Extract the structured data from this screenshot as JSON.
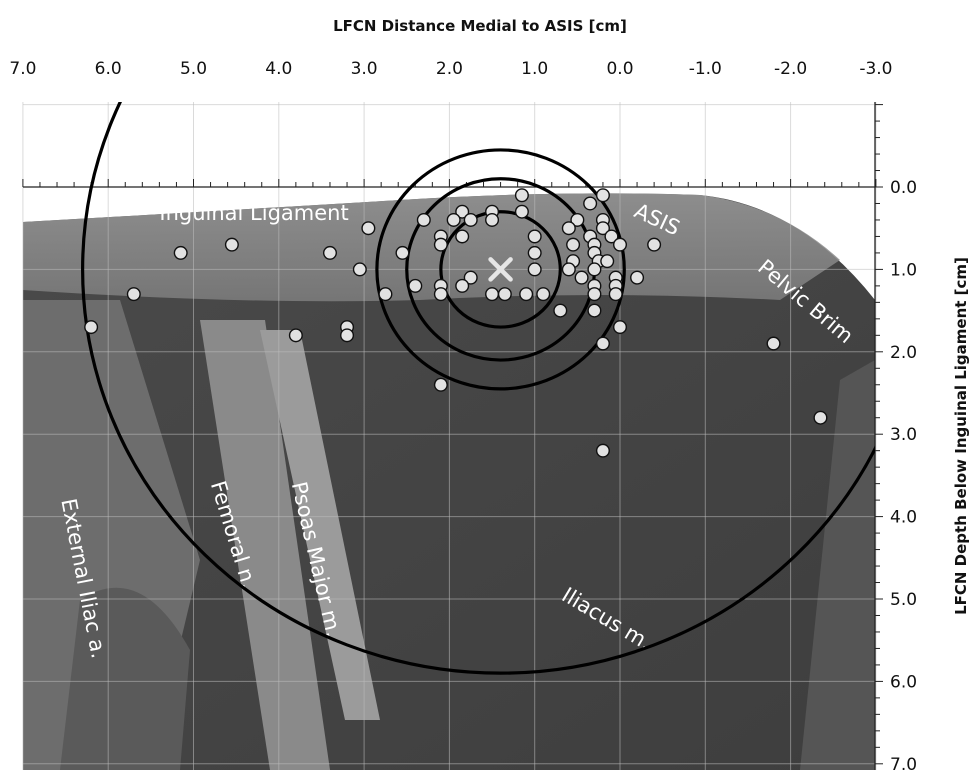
{
  "chart_data": {
    "type": "scatter",
    "x_title": "LFCN Distance Medial to ASIS [cm]",
    "y_title": "LFCN Depth Below Inguinal Ligament [cm]",
    "x_range": [
      7.0,
      -3.0
    ],
    "y_range": [
      -1.0,
      7.0
    ],
    "x_ticks": [
      "7.0",
      "6.0",
      "5.0",
      "4.0",
      "3.0",
      "2.0",
      "1.0",
      "0.0",
      "-1.0",
      "-2.0",
      "-3.0"
    ],
    "y_ticks": [
      "0.0",
      "1.0",
      "2.0",
      "3.0",
      "4.0",
      "5.0",
      "6.0",
      "7.0"
    ],
    "grid": true,
    "background": "grayscale cadaver dissection photograph",
    "center": {
      "x": 1.4,
      "y": 1.0
    },
    "circles_radius_cm": [
      0.7,
      1.1,
      1.45,
      4.9
    ],
    "points": [
      {
        "x": 0.2,
        "y": 0.1
      },
      {
        "x": 1.15,
        "y": 0.1
      },
      {
        "x": 0.35,
        "y": 0.2
      },
      {
        "x": 1.85,
        "y": 0.3
      },
      {
        "x": 1.5,
        "y": 0.3
      },
      {
        "x": 1.15,
        "y": 0.3
      },
      {
        "x": 2.3,
        "y": 0.4
      },
      {
        "x": 1.95,
        "y": 0.4
      },
      {
        "x": 1.75,
        "y": 0.4
      },
      {
        "x": 1.5,
        "y": 0.4
      },
      {
        "x": 0.5,
        "y": 0.4
      },
      {
        "x": 0.2,
        "y": 0.4
      },
      {
        "x": 2.95,
        "y": 0.5
      },
      {
        "x": 2.1,
        "y": 0.6
      },
      {
        "x": 1.85,
        "y": 0.6
      },
      {
        "x": 0.6,
        "y": 0.5
      },
      {
        "x": 0.2,
        "y": 0.5
      },
      {
        "x": 1.0,
        "y": 0.6
      },
      {
        "x": 0.35,
        "y": 0.6
      },
      {
        "x": 0.1,
        "y": 0.6
      },
      {
        "x": 2.1,
        "y": 0.7
      },
      {
        "x": 0.55,
        "y": 0.7
      },
      {
        "x": 0.3,
        "y": 0.7
      },
      {
        "x": 0.0,
        "y": 0.7
      },
      {
        "x": -0.4,
        "y": 0.7
      },
      {
        "x": 5.15,
        "y": 0.8
      },
      {
        "x": 4.55,
        "y": 0.7
      },
      {
        "x": 3.4,
        "y": 0.8
      },
      {
        "x": 2.55,
        "y": 0.8
      },
      {
        "x": 1.0,
        "y": 0.8
      },
      {
        "x": 0.3,
        "y": 0.8
      },
      {
        "x": 0.55,
        "y": 0.9
      },
      {
        "x": 0.25,
        "y": 0.9
      },
      {
        "x": 0.15,
        "y": 0.9
      },
      {
        "x": 3.05,
        "y": 1.0
      },
      {
        "x": 1.0,
        "y": 1.0
      },
      {
        "x": 0.6,
        "y": 1.0
      },
      {
        "x": 0.3,
        "y": 1.0
      },
      {
        "x": 1.75,
        "y": 1.1
      },
      {
        "x": 0.45,
        "y": 1.1
      },
      {
        "x": 0.05,
        "y": 1.1
      },
      {
        "x": -0.2,
        "y": 1.1
      },
      {
        "x": 2.4,
        "y": 1.2
      },
      {
        "x": 2.1,
        "y": 1.2
      },
      {
        "x": 1.85,
        "y": 1.2
      },
      {
        "x": 0.3,
        "y": 1.2
      },
      {
        "x": 0.05,
        "y": 1.2
      },
      {
        "x": 5.7,
        "y": 1.3
      },
      {
        "x": 2.75,
        "y": 1.3
      },
      {
        "x": 2.1,
        "y": 1.3
      },
      {
        "x": 1.5,
        "y": 1.3
      },
      {
        "x": 1.35,
        "y": 1.3
      },
      {
        "x": 1.1,
        "y": 1.3
      },
      {
        "x": 0.9,
        "y": 1.3
      },
      {
        "x": 0.3,
        "y": 1.3
      },
      {
        "x": 0.05,
        "y": 1.3
      },
      {
        "x": 0.7,
        "y": 1.5
      },
      {
        "x": 0.3,
        "y": 1.5
      },
      {
        "x": 6.2,
        "y": 1.7
      },
      {
        "x": 3.2,
        "y": 1.7
      },
      {
        "x": 0.0,
        "y": 1.7
      },
      {
        "x": 3.8,
        "y": 1.8
      },
      {
        "x": 3.2,
        "y": 1.8
      },
      {
        "x": 0.2,
        "y": 1.9
      },
      {
        "x": -1.8,
        "y": 1.9
      },
      {
        "x": 2.1,
        "y": 2.4
      },
      {
        "x": -2.35,
        "y": 2.8
      },
      {
        "x": 0.2,
        "y": 3.2
      }
    ],
    "annotations": [
      {
        "text": "Inguinal Ligament",
        "x": 5.4,
        "y": 0.4,
        "rotate": 0
      },
      {
        "text": "ASIS",
        "x": -0.15,
        "y": 0.35,
        "rotate": 25
      },
      {
        "text": "Pelvic Brim",
        "x": -1.6,
        "y": 1.0,
        "rotate": 40
      },
      {
        "text": "External Iliac a.",
        "x": 6.55,
        "y": 3.8,
        "rotate": 79
      },
      {
        "text": "Femoral n.",
        "x": 4.8,
        "y": 3.6,
        "rotate": 73
      },
      {
        "text": "Psoas Major m.",
        "x": 3.85,
        "y": 3.6,
        "rotate": 77
      },
      {
        "text": "Iliacus m.",
        "x": 0.7,
        "y": 5.0,
        "rotate": 31
      }
    ]
  },
  "colors": {
    "point_fill": "#e2e2e2",
    "point_stroke": "#111111",
    "circle_stroke": "#000000",
    "center_marker": "#e6e6e6",
    "grid": "#bdbdbd"
  }
}
